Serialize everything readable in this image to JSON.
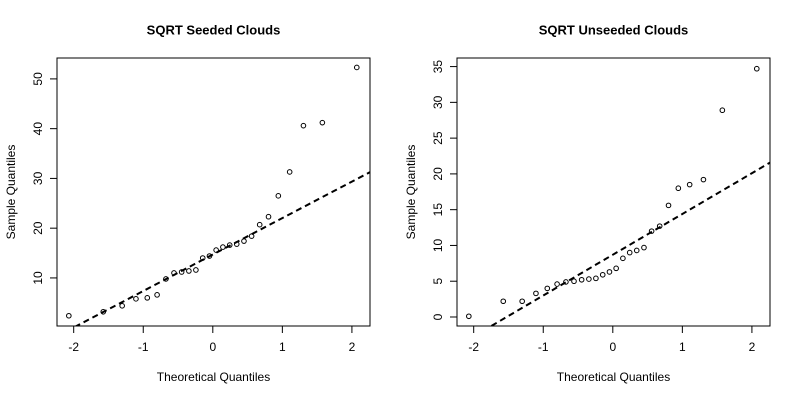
{
  "chart_data": [
    {
      "type": "scatter",
      "title": "SQRT Seeded Clouds",
      "x_label": "Theoretical Quantiles",
      "y_label": "Sample Quantiles",
      "x": [
        -2.07,
        -1.575,
        -1.303,
        -1.105,
        -0.942,
        -0.801,
        -0.674,
        -0.558,
        -0.448,
        -0.344,
        -0.243,
        -0.145,
        -0.048,
        0.048,
        0.145,
        0.243,
        0.344,
        0.448,
        0.558,
        0.674,
        0.801,
        0.942,
        1.105,
        1.303,
        1.575,
        2.07
      ],
      "values": [
        2.4,
        3.2,
        4.4,
        5.8,
        6.0,
        6.6,
        9.8,
        11.0,
        11.2,
        11.4,
        11.6,
        14.0,
        14.4,
        15.6,
        16.2,
        16.6,
        16.8,
        17.4,
        18.4,
        20.7,
        22.3,
        26.5,
        31.3,
        40.6,
        41.2,
        52.3
      ],
      "color": "#000000",
      "reference_line": {
        "intercept": 14.7,
        "slope": 7.33
      },
      "xlim": [
        -2.24,
        2.26
      ],
      "ylim": [
        0.34,
        54.2
      ],
      "xticks": [
        -2,
        -1,
        0,
        1,
        2
      ],
      "yticks": [
        10,
        20,
        30,
        40,
        50
      ]
    },
    {
      "type": "scatter",
      "title": "SQRT Unseeded Clouds",
      "x_label": "Theoretical Quantiles",
      "y_label": "Sample Quantiles",
      "x": [
        -2.07,
        -1.575,
        -1.303,
        -1.105,
        -0.942,
        -0.801,
        -0.674,
        -0.558,
        -0.448,
        -0.344,
        -0.243,
        -0.145,
        -0.048,
        0.048,
        0.145,
        0.243,
        0.344,
        0.448,
        0.558,
        0.674,
        0.801,
        0.942,
        1.105,
        1.303,
        1.575,
        2.07
      ],
      "values": [
        0.1,
        2.2,
        2.2,
        3.3,
        4.0,
        4.6,
        4.9,
        5.0,
        5.2,
        5.3,
        5.4,
        5.9,
        6.3,
        6.8,
        8.2,
        9.0,
        9.3,
        9.7,
        12.0,
        12.7,
        15.6,
        18.0,
        18.5,
        19.2,
        28.9,
        34.7
      ],
      "color": "#000000",
      "reference_line": {
        "intercept": 8.7,
        "slope": 5.7
      },
      "xlim": [
        -2.24,
        2.26
      ],
      "ylim": [
        -1.26,
        36.2
      ],
      "xticks": [
        -2,
        -1,
        0,
        1,
        2
      ],
      "yticks": [
        0,
        5,
        10,
        15,
        20,
        25,
        30,
        35
      ]
    }
  ]
}
